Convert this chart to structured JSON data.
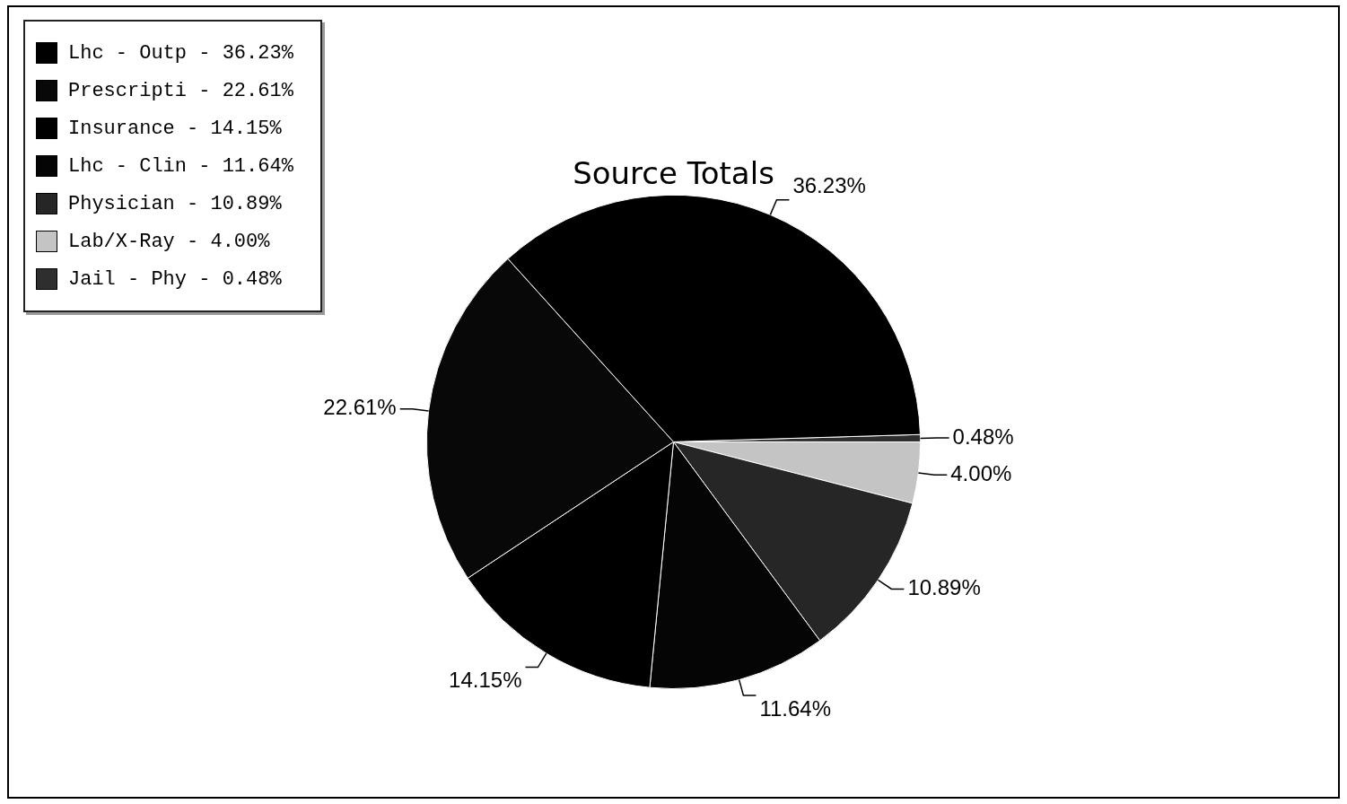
{
  "chart_data": {
    "type": "pie",
    "title": "Source Totals",
    "categories": [
      "Lhc - Outp",
      "Prescripti",
      "Insurance",
      "Lhc - Clin",
      "Physician",
      "Lab/X-Ray",
      "Jail - Phy"
    ],
    "values": [
      36.23,
      22.61,
      14.15,
      11.64,
      10.89,
      4.0,
      0.48
    ],
    "value_labels": [
      "36.23%",
      "22.61%",
      "14.15%",
      "11.64%",
      "10.89%",
      "4.00%",
      "0.48%"
    ],
    "colors": [
      "#000000",
      "#080808",
      "#000000",
      "#050505",
      "#262626",
      "#c4c4c4",
      "#2e2e2e"
    ],
    "legend": "top left"
  }
}
